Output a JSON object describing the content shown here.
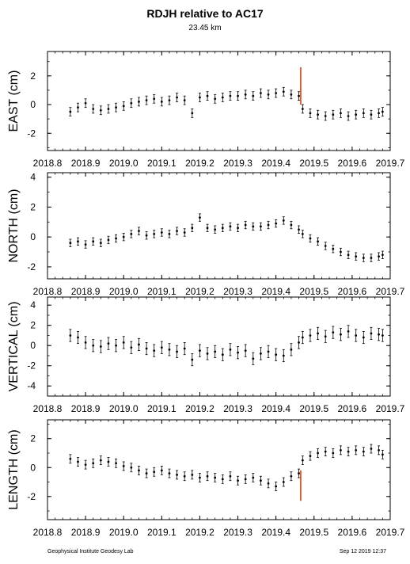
{
  "title": "RDJH relative to AC17",
  "subtitle": "23.45 km",
  "footer_left": "Geophysical Institute Geodesy Lab",
  "footer_right": "Sep 12 2019 12:37",
  "colors": {
    "marker": "#000000",
    "offset": "#e03000",
    "axes": "#000000"
  },
  "chart_data": [
    {
      "type": "scatter",
      "ylabel": "EAST (cm)",
      "xlim": [
        2018.8,
        2019.7
      ],
      "ylim": [
        -3.2,
        3.7
      ],
      "xticks": [
        2018.8,
        2018.9,
        2019.0,
        2019.1,
        2019.2,
        2019.3,
        2019.4,
        2019.5,
        2019.6,
        2019.7
      ],
      "xtick_labels": [
        "2018.8",
        "2018.9",
        "2019.0",
        "2019.1",
        "2019.2",
        "2019.3",
        "2019.4",
        "2019.5",
        "2019.6",
        "2019.7"
      ],
      "yticks": [
        -2,
        0,
        2
      ],
      "ytick_labels": [
        "-2",
        "0",
        "2"
      ],
      "error_cm": 0.3,
      "offset": {
        "x": 2019.465,
        "y_from": 2.6,
        "y_to": 0.0
      },
      "x": [
        2018.86,
        2018.88,
        2018.9,
        2018.92,
        2018.94,
        2018.96,
        2018.98,
        2019.0,
        2019.02,
        2019.04,
        2019.06,
        2019.08,
        2019.1,
        2019.12,
        2019.14,
        2019.16,
        2019.18,
        2019.2,
        2019.22,
        2019.24,
        2019.26,
        2019.28,
        2019.3,
        2019.32,
        2019.34,
        2019.36,
        2019.38,
        2019.4,
        2019.42,
        2019.44,
        2019.46,
        2019.47,
        2019.49,
        2019.51,
        2019.53,
        2019.55,
        2019.57,
        2019.59,
        2019.61,
        2019.63,
        2019.65,
        2019.67,
        2019.68
      ],
      "y": [
        -0.5,
        -0.2,
        0.1,
        -0.3,
        -0.4,
        -0.3,
        -0.2,
        -0.1,
        0.1,
        0.2,
        0.3,
        0.4,
        0.2,
        0.3,
        0.5,
        0.3,
        -0.6,
        0.5,
        0.6,
        0.4,
        0.5,
        0.6,
        0.6,
        0.7,
        0.6,
        0.8,
        0.7,
        0.8,
        0.9,
        0.7,
        0.6,
        -0.3,
        -0.6,
        -0.7,
        -0.8,
        -0.7,
        -0.6,
        -0.8,
        -0.7,
        -0.6,
        -0.7,
        -0.6,
        -0.5
      ]
    },
    {
      "type": "scatter",
      "ylabel": "NORTH (cm)",
      "xlim": [
        2018.8,
        2019.7
      ],
      "ylim": [
        -2.8,
        4.3
      ],
      "xticks": [
        2018.8,
        2018.9,
        2019.0,
        2019.1,
        2019.2,
        2019.3,
        2019.4,
        2019.5,
        2019.6,
        2019.7
      ],
      "xtick_labels": [
        "2018.8",
        "2018.9",
        "2019.0",
        "2019.1",
        "2019.2",
        "2019.3",
        "2019.4",
        "2019.5",
        "2019.6",
        "2019.7"
      ],
      "yticks": [
        -2,
        0,
        2,
        4
      ],
      "ytick_labels": [
        "-2",
        "0",
        "2",
        "4"
      ],
      "error_cm": 0.25,
      "offset": null,
      "x": [
        2018.86,
        2018.88,
        2018.9,
        2018.92,
        2018.94,
        2018.96,
        2018.98,
        2019.0,
        2019.02,
        2019.04,
        2019.06,
        2019.08,
        2019.1,
        2019.12,
        2019.14,
        2019.16,
        2019.18,
        2019.2,
        2019.22,
        2019.24,
        2019.26,
        2019.28,
        2019.3,
        2019.32,
        2019.34,
        2019.36,
        2019.38,
        2019.4,
        2019.42,
        2019.44,
        2019.46,
        2019.47,
        2019.49,
        2019.51,
        2019.53,
        2019.55,
        2019.57,
        2019.59,
        2019.61,
        2019.63,
        2019.65,
        2019.67,
        2019.68
      ],
      "y": [
        -0.4,
        -0.3,
        -0.5,
        -0.3,
        -0.4,
        -0.2,
        -0.1,
        0.0,
        0.2,
        0.4,
        0.1,
        0.2,
        0.3,
        0.2,
        0.4,
        0.3,
        0.6,
        1.3,
        0.6,
        0.5,
        0.6,
        0.7,
        0.6,
        0.8,
        0.7,
        0.7,
        0.8,
        0.9,
        1.1,
        0.8,
        0.5,
        0.2,
        -0.1,
        -0.3,
        -0.6,
        -0.8,
        -1.0,
        -1.2,
        -1.3,
        -1.4,
        -1.4,
        -1.3,
        -1.2
      ]
    },
    {
      "type": "scatter",
      "ylabel": "VERTICAL (cm)",
      "xlim": [
        2018.8,
        2019.7
      ],
      "ylim": [
        -5.0,
        4.8
      ],
      "xticks": [
        2018.8,
        2018.9,
        2019.0,
        2019.1,
        2019.2,
        2019.3,
        2019.4,
        2019.5,
        2019.6,
        2019.7
      ],
      "xtick_labels": [
        "2018.8",
        "2018.9",
        "2019.0",
        "2019.1",
        "2019.2",
        "2019.3",
        "2019.4",
        "2019.5",
        "2019.6",
        "2019.7"
      ],
      "yticks": [
        -4,
        -2,
        0,
        2,
        4
      ],
      "ytick_labels": [
        "-4",
        "-2",
        "0",
        "2",
        "4"
      ],
      "error_cm": 0.6,
      "offset": null,
      "x": [
        2018.86,
        2018.88,
        2018.9,
        2018.92,
        2018.94,
        2018.96,
        2018.98,
        2019.0,
        2019.02,
        2019.04,
        2019.06,
        2019.08,
        2019.1,
        2019.12,
        2019.14,
        2019.16,
        2019.18,
        2019.2,
        2019.22,
        2019.24,
        2019.26,
        2019.28,
        2019.3,
        2019.32,
        2019.34,
        2019.36,
        2019.38,
        2019.4,
        2019.42,
        2019.44,
        2019.46,
        2019.47,
        2019.49,
        2019.51,
        2019.53,
        2019.55,
        2019.57,
        2019.59,
        2019.61,
        2019.63,
        2019.65,
        2019.67,
        2019.68
      ],
      "y": [
        1.0,
        0.8,
        0.3,
        0.0,
        -0.1,
        0.2,
        0.0,
        0.3,
        -0.2,
        0.1,
        -0.3,
        -0.5,
        -0.2,
        -0.4,
        -0.6,
        -0.3,
        -1.4,
        -0.5,
        -0.8,
        -0.6,
        -0.9,
        -0.4,
        -0.7,
        -0.5,
        -1.3,
        -0.8,
        -0.6,
        -0.9,
        -1.0,
        -0.4,
        0.3,
        0.8,
        1.0,
        1.2,
        0.9,
        1.3,
        1.1,
        1.4,
        1.0,
        0.8,
        1.2,
        1.1,
        1.0
      ]
    },
    {
      "type": "scatter",
      "ylabel": "LENGTH (cm)",
      "xlim": [
        2018.8,
        2019.7
      ],
      "ylim": [
        -3.6,
        3.3
      ],
      "xticks": [
        2018.8,
        2018.9,
        2019.0,
        2019.1,
        2019.2,
        2019.3,
        2019.4,
        2019.5,
        2019.6,
        2019.7
      ],
      "xtick_labels": [
        "2018.8",
        "2018.9",
        "2019.0",
        "2019.1",
        "2019.2",
        "2019.3",
        "2019.4",
        "2019.5",
        "2019.6",
        "2019.7"
      ],
      "yticks": [
        -2,
        0,
        2
      ],
      "ytick_labels": [
        "-2",
        "0",
        "2"
      ],
      "error_cm": 0.3,
      "offset": {
        "x": 2019.465,
        "y_from": -2.3,
        "y_to": -0.2
      },
      "x": [
        2018.86,
        2018.88,
        2018.9,
        2018.92,
        2018.94,
        2018.96,
        2018.98,
        2019.0,
        2019.02,
        2019.04,
        2019.06,
        2019.08,
        2019.1,
        2019.12,
        2019.14,
        2019.16,
        2019.18,
        2019.2,
        2019.22,
        2019.24,
        2019.26,
        2019.28,
        2019.3,
        2019.32,
        2019.34,
        2019.36,
        2019.38,
        2019.4,
        2019.42,
        2019.44,
        2019.46,
        2019.47,
        2019.49,
        2019.51,
        2019.53,
        2019.55,
        2019.57,
        2019.59,
        2019.61,
        2019.63,
        2019.65,
        2019.67,
        2019.68
      ],
      "y": [
        0.6,
        0.4,
        0.2,
        0.3,
        0.5,
        0.4,
        0.3,
        0.1,
        0.0,
        -0.2,
        -0.4,
        -0.3,
        -0.2,
        -0.4,
        -0.5,
        -0.6,
        -0.5,
        -0.7,
        -0.6,
        -0.7,
        -0.8,
        -0.6,
        -0.9,
        -0.8,
        -0.7,
        -0.9,
        -1.1,
        -1.3,
        -1.0,
        -0.6,
        -0.4,
        0.5,
        0.8,
        1.0,
        1.1,
        1.0,
        1.2,
        1.1,
        1.2,
        1.1,
        1.3,
        1.2,
        0.9
      ]
    }
  ]
}
